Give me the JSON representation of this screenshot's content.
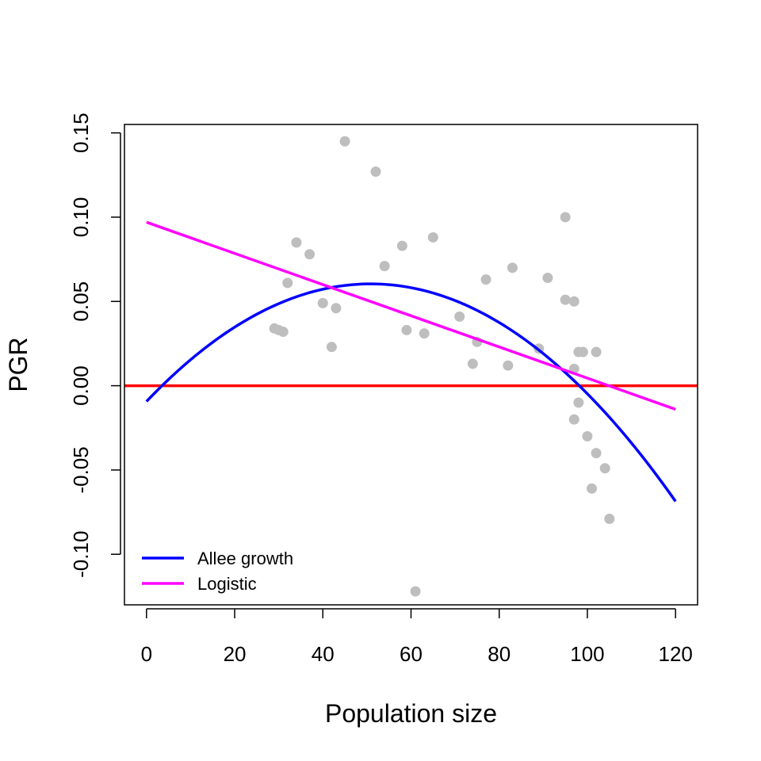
{
  "chart_data": {
    "type": "scatter",
    "title": "",
    "xlabel": "Population size",
    "ylabel": "PGR",
    "xlim": [
      -5,
      125
    ],
    "ylim": [
      -0.13,
      0.155
    ],
    "x_ticks": [
      0,
      20,
      40,
      60,
      80,
      100,
      120
    ],
    "x_tick_labels": [
      "0",
      "20",
      "40",
      "60",
      "80",
      "100",
      "120"
    ],
    "y_ticks": [
      -0.1,
      -0.05,
      0.0,
      0.05,
      0.1,
      0.15
    ],
    "y_tick_labels": [
      "-0.10",
      "-0.05",
      "0.00",
      "0.05",
      "0.10",
      "0.15"
    ],
    "grid": false,
    "legend_position": "bottom-left",
    "points": {
      "color": "#bebebe",
      "x": [
        29,
        30,
        31,
        32,
        34,
        37,
        40,
        42,
        43,
        45,
        52,
        54,
        58,
        59,
        61,
        63,
        65,
        71,
        74,
        75,
        77,
        82,
        83,
        89,
        91,
        95,
        95,
        97,
        97,
        97,
        98,
        98,
        99,
        100,
        101,
        102,
        102,
        104,
        105
      ],
      "y": [
        0.034,
        0.033,
        0.032,
        0.061,
        0.085,
        0.078,
        0.049,
        0.023,
        0.046,
        0.145,
        0.127,
        0.071,
        0.083,
        0.033,
        -0.122,
        0.031,
        0.088,
        0.041,
        0.013,
        0.026,
        0.063,
        0.012,
        0.07,
        0.022,
        0.064,
        0.1,
        0.051,
        0.05,
        0.01,
        -0.02,
        -0.01,
        0.02,
        0.02,
        -0.03,
        -0.061,
        0.02,
        -0.04,
        -0.049,
        -0.079
      ]
    },
    "series": [
      {
        "name": "Allee growth",
        "color": "#0000ff",
        "kind": "curve",
        "x": [
          0,
          10,
          20,
          30,
          40,
          50,
          60,
          70,
          80,
          90,
          100,
          110,
          120
        ],
        "y": [
          -0.011,
          0.016,
          0.035,
          0.05,
          0.058,
          0.061,
          0.058,
          0.05,
          0.037,
          0.018,
          -0.006,
          -0.034,
          -0.067
        ]
      },
      {
        "name": "Logistic",
        "color": "#ff00ff",
        "kind": "line",
        "x": [
          0,
          120
        ],
        "y": [
          0.097,
          -0.014
        ]
      }
    ],
    "reference_line": {
      "y": 0.0,
      "color": "#ff0000"
    }
  }
}
